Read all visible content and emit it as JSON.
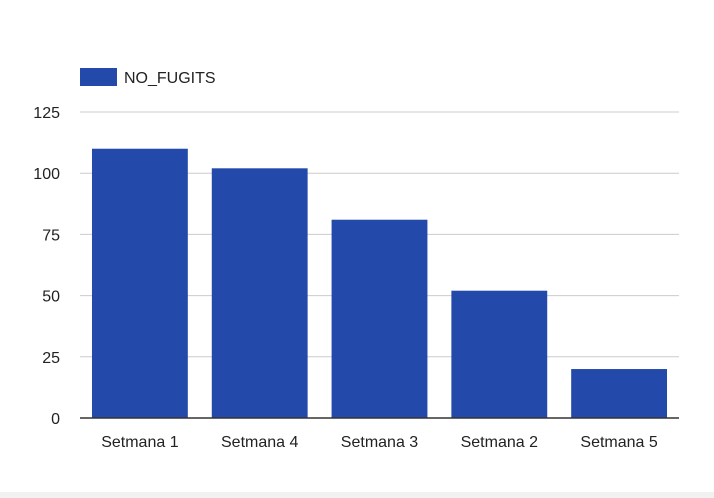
{
  "chart_data": {
    "type": "bar",
    "title": "",
    "xlabel": "",
    "ylabel": "",
    "categories": [
      "Setmana 1",
      "Setmana 4",
      "Setmana 3",
      "Setmana 2",
      "Setmana 5"
    ],
    "series": [
      {
        "name": "NO_FUGITS",
        "values": [
          110,
          102,
          81,
          52,
          20
        ],
        "color": "#2349ab"
      }
    ],
    "ylim": [
      0,
      125
    ],
    "yticks": [
      0,
      25,
      50,
      75,
      100,
      125
    ],
    "grid": true,
    "legend_position": "top-left"
  }
}
